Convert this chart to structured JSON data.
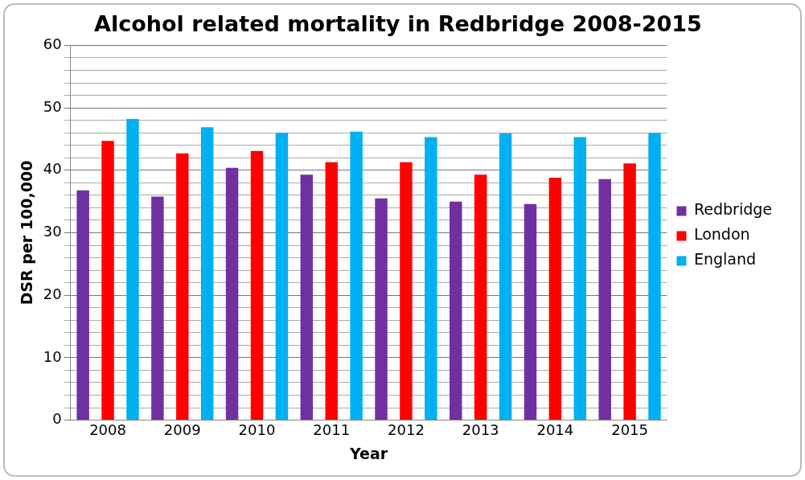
{
  "chart_data": {
    "type": "bar",
    "title": "Alcohol related mortality in Redbridge 2008-2015",
    "xlabel": "Year",
    "ylabel": "DSR per 100,000",
    "categories": [
      "2008",
      "2009",
      "2010",
      "2011",
      "2012",
      "2013",
      "2014",
      "2015"
    ],
    "series": [
      {
        "name": "Redbridge",
        "color": "#7030a0",
        "values": [
          36.8,
          35.8,
          40.4,
          39.3,
          35.5,
          35.0,
          34.6,
          38.6
        ]
      },
      {
        "name": "London",
        "color": "#ff0000",
        "values": [
          44.7,
          42.7,
          43.1,
          41.3,
          41.3,
          39.3,
          38.8,
          41.1
        ]
      },
      {
        "name": "England",
        "color": "#00b0f0",
        "values": [
          48.2,
          46.9,
          46.0,
          46.2,
          45.3,
          45.9,
          45.3,
          46.0
        ]
      }
    ],
    "ylim": [
      0,
      60
    ],
    "yticks": [
      0,
      {
        "value": 2,
        "label": null
      },
      {
        "value": 4,
        "label": null
      },
      {
        "value": 6,
        "label": null
      },
      {
        "value": 8,
        "label": null
      },
      10,
      {
        "value": 12,
        "label": null
      },
      {
        "value": 14,
        "label": null
      },
      {
        "value": 16,
        "label": null
      },
      {
        "value": 18,
        "label": null
      },
      20,
      {
        "value": 22,
        "label": null
      },
      {
        "value": 24,
        "label": null
      },
      {
        "value": 26,
        "label": null
      },
      {
        "value": 28,
        "label": null
      },
      30,
      {
        "value": 32,
        "label": null
      },
      {
        "value": 34,
        "label": null
      },
      {
        "value": 36,
        "label": null
      },
      {
        "value": 38,
        "label": null
      },
      40,
      {
        "value": 42,
        "label": null
      },
      {
        "value": 44,
        "label": null
      },
      {
        "value": 46,
        "label": null
      },
      {
        "value": 48,
        "label": null
      },
      50,
      {
        "value": 52,
        "label": null
      },
      {
        "value": 54,
        "label": null
      },
      {
        "value": 56,
        "label": null
      },
      {
        "value": 58,
        "label": null
      },
      60
    ],
    "grid": "y",
    "legend": "right"
  }
}
